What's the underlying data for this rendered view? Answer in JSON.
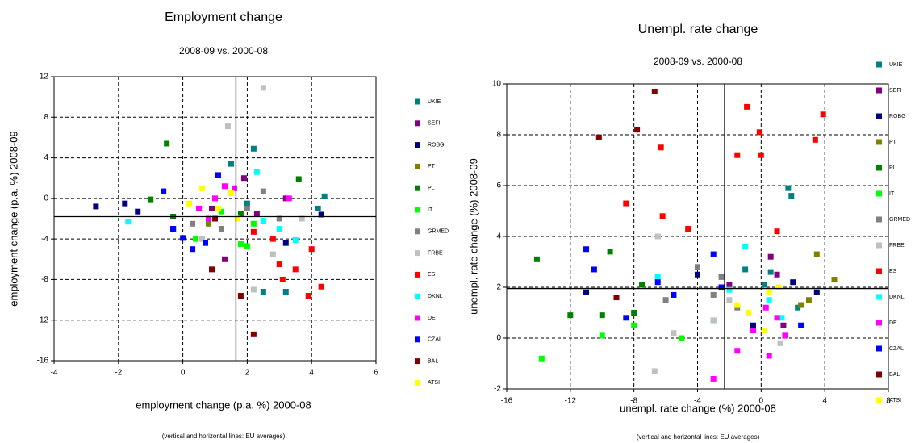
{
  "chart_data": [
    {
      "type": "scatter",
      "title": "Employment change",
      "subtitle": "2008-09 vs. 2000-08",
      "x_label": "employment change (p.a. %) 2000-08",
      "y_label": "employment change (p.a. %) 2008-09",
      "note": "(vertical and horizontal lines: EU averages)",
      "xlim": [
        -4,
        6
      ],
      "ylim": [
        -16,
        12
      ],
      "xticks": [
        -4,
        -2,
        0,
        2,
        4,
        6
      ],
      "yticks": [
        -16,
        -12,
        -8,
        -4,
        0,
        4,
        8,
        12
      ],
      "grid": true,
      "legend": "right",
      "ref_x": 1.65,
      "ref_y": -1.8,
      "series": [
        {
          "name": "UKIE",
          "color": "#008080",
          "x": [
            2.2,
            2.5,
            4.2,
            4.4,
            1.5,
            2.0,
            3.2
          ],
          "y": [
            4.9,
            -9.2,
            -1,
            0.2,
            3.4,
            -0.5,
            -9.2
          ]
        },
        {
          "name": "SEFI",
          "color": "#800080",
          "x": [
            1.3,
            3.2,
            0.9,
            1.9,
            2.3
          ],
          "y": [
            -6,
            0,
            -1,
            2,
            -1.5
          ]
        },
        {
          "name": "ROBG",
          "color": "#000080",
          "x": [
            -2.7,
            -1.8,
            -1.4,
            4.3,
            3.2,
            -0.3
          ],
          "y": [
            -0.8,
            -0.5,
            -1.3,
            -1.6,
            -4.4,
            -3
          ]
        },
        {
          "name": "PT",
          "color": "#808000",
          "x": [
            0.8,
            1.2,
            0.5
          ],
          "y": [
            -2.5,
            -3,
            -1
          ]
        },
        {
          "name": "PL",
          "color": "#008000",
          "x": [
            -0.5,
            -1.0,
            3.6,
            1.8,
            -0.3
          ],
          "y": [
            5.4,
            -0.1,
            1.9,
            -1.5,
            -1.8
          ]
        },
        {
          "name": "IT",
          "color": "#00ff00",
          "x": [
            1.8,
            0.4,
            2.2,
            2.0,
            1.2
          ],
          "y": [
            -4.5,
            -4,
            -2.5,
            -4.7,
            -1.3
          ]
        },
        {
          "name": "GRMED",
          "color": "#808080",
          "x": [
            1.2,
            2.5,
            2.0,
            3.0,
            0.3
          ],
          "y": [
            -3,
            0.7,
            -1,
            -2,
            -2.5
          ]
        },
        {
          "name": "FRBE",
          "color": "#c0c0c0",
          "x": [
            2.5,
            1.4,
            2.8,
            3.7,
            0.6,
            2.2
          ],
          "y": [
            10.9,
            7.1,
            -5.5,
            -2,
            -4,
            -9
          ]
        },
        {
          "name": "ES",
          "color": "#ff0000",
          "x": [
            2.8,
            3.0,
            3.5,
            3.9,
            4.3,
            3.1,
            2.2,
            4.0
          ],
          "y": [
            -4,
            -6.5,
            -7,
            -9.6,
            -8.7,
            -8,
            -3.3,
            -5
          ]
        },
        {
          "name": "DKNL",
          "color": "#00ffff",
          "x": [
            -1.7,
            2.3,
            3.0,
            2.5,
            3.5
          ],
          "y": [
            -2.3,
            2.6,
            -3,
            -2.2,
            -4.1
          ]
        },
        {
          "name": "DE",
          "color": "#ff00ff",
          "x": [
            1.3,
            1.0,
            0.5,
            3.3,
            0.8,
            1.6
          ],
          "y": [
            1.2,
            0,
            -1,
            0,
            -2,
            1
          ]
        },
        {
          "name": "CZAL",
          "color": "#0000ff",
          "x": [
            -0.6,
            0.0,
            0.3,
            0.7,
            1.1,
            -0.3
          ],
          "y": [
            0.7,
            -3.9,
            -5,
            -4.4,
            2.3,
            -3
          ]
        },
        {
          "name": "BAL",
          "color": "#800000",
          "x": [
            2.2,
            1.8,
            0.9,
            1.0
          ],
          "y": [
            -13.4,
            -9.6,
            -7,
            -2
          ]
        },
        {
          "name": "ATSI",
          "color": "#ffff00",
          "x": [
            1.1,
            1.5,
            1.7,
            0.6,
            0.2
          ],
          "y": [
            -1,
            0.5,
            -2,
            1,
            -0.5
          ]
        }
      ]
    },
    {
      "type": "scatter",
      "title": "Unempl. rate change",
      "subtitle": "2008-09 vs. 2000-08",
      "x_label": "unempl. rate change (%) 2000-08",
      "y_label": "unempl. rate change (%) 2008-09",
      "note": "(vertical and horizontal lines: EU averages)",
      "xlim": [
        -16,
        8
      ],
      "ylim": [
        -2,
        10
      ],
      "xticks": [
        -16,
        -12,
        -8,
        -4,
        0,
        4,
        8
      ],
      "yticks": [
        -2,
        0,
        2,
        4,
        6,
        8,
        10
      ],
      "grid": true,
      "legend": "right",
      "ref_x": -2.3,
      "ref_y": 1.95,
      "series": [
        {
          "name": "UKIE",
          "color": "#008080",
          "x": [
            1.7,
            1.9,
            0.6,
            -1.0,
            2.3,
            0.2
          ],
          "y": [
            5.9,
            5.6,
            2.6,
            2.7,
            1.2,
            2.1
          ]
        },
        {
          "name": "SEFI",
          "color": "#800080",
          "x": [
            1.0,
            0.6,
            -2.0,
            1.4
          ],
          "y": [
            2.5,
            3.2,
            2.1,
            0.5
          ]
        },
        {
          "name": "ROBG",
          "color": "#000080",
          "x": [
            -11,
            3.5,
            2.0,
            -4.0,
            -0.5
          ],
          "y": [
            1.8,
            1.8,
            2.2,
            2.5,
            0.5
          ]
        },
        {
          "name": "PT",
          "color": "#808000",
          "x": [
            3.5,
            4.6,
            2.5,
            3.0
          ],
          "y": [
            3.3,
            2.3,
            1.3,
            1.5
          ]
        },
        {
          "name": "PL",
          "color": "#008000",
          "x": [
            -14.1,
            -9.5,
            -7.5,
            -12,
            -10,
            -8
          ],
          "y": [
            3.1,
            3.4,
            2.1,
            0.9,
            0.9,
            1.0
          ]
        },
        {
          "name": "IT",
          "color": "#00ff00",
          "x": [
            -13.8,
            -10,
            -8,
            -5,
            -3
          ],
          "y": [
            -0.8,
            0.1,
            0.5,
            0,
            0.7
          ]
        },
        {
          "name": "GRMED",
          "color": "#808080",
          "x": [
            -6,
            -4,
            -2.5,
            -1.5,
            -3
          ],
          "y": [
            1.5,
            2.8,
            2.4,
            1.2,
            1.7
          ]
        },
        {
          "name": "FRBE",
          "color": "#c0c0c0",
          "x": [
            -6.5,
            -6.7,
            -5.5,
            -3,
            1.2,
            -2
          ],
          "y": [
            4,
            -1.3,
            0.2,
            0.7,
            -0.2,
            1.5
          ]
        },
        {
          "name": "ES",
          "color": "#ff0000",
          "x": [
            -6.3,
            -8.5,
            -0.9,
            -0.1,
            0,
            3.4,
            3.9,
            -6.2,
            -4.6,
            1.0,
            -1.5
          ],
          "y": [
            7.5,
            5.3,
            9.1,
            8.1,
            7.2,
            7.8,
            8.8,
            4.8,
            4.3,
            4.2,
            7.2
          ]
        },
        {
          "name": "DKNL",
          "color": "#00ffff",
          "x": [
            -6.5,
            -1,
            -2,
            0.5,
            1.3
          ],
          "y": [
            2.4,
            3.6,
            1.9,
            1.5,
            0.8
          ]
        },
        {
          "name": "DE",
          "color": "#ff00ff",
          "x": [
            -3,
            -0.5,
            0.3,
            1,
            -1.5,
            0.5,
            1.5
          ],
          "y": [
            -1.6,
            0.3,
            1.2,
            0.8,
            -0.5,
            -0.7,
            0.1
          ]
        },
        {
          "name": "CZAL",
          "color": "#0000ff",
          "x": [
            -11,
            -10.5,
            -6.5,
            -3,
            -2.5,
            -8.5,
            -5.5,
            2.5
          ],
          "y": [
            3.5,
            2.7,
            2.2,
            3.3,
            2,
            0.8,
            1.7,
            0.5
          ]
        },
        {
          "name": "BAL",
          "color": "#800000",
          "x": [
            -6.7,
            -7.8,
            -10.2,
            -9.1
          ],
          "y": [
            9.7,
            8.2,
            7.9,
            1.6
          ]
        },
        {
          "name": "ATSI",
          "color": "#ffff00",
          "x": [
            -0.8,
            0.5,
            -1.5,
            0.2,
            1.1
          ],
          "y": [
            1.0,
            1.8,
            1.3,
            0.3,
            2.0
          ]
        }
      ]
    }
  ]
}
